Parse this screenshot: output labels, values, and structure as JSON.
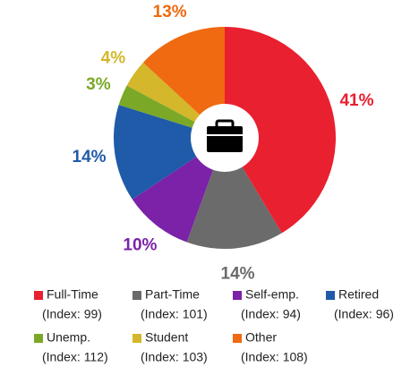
{
  "chart_data": {
    "type": "donut",
    "categories": [
      "Full-Time",
      "Part-Time",
      "Self-emp.",
      "Retired",
      "Unemp.",
      "Student",
      "Other"
    ],
    "index_labels": [
      "(Index: 99)",
      "(Index: 101)",
      "(Index: 94)",
      "(Index: 96)",
      "(Index: 112)",
      "(Index: 103)",
      "(Index: 108)"
    ],
    "values": [
      41,
      14,
      10,
      14,
      3,
      4,
      13
    ],
    "value_labels": [
      "41%",
      "14%",
      "10%",
      "14%",
      "3%",
      "4%",
      "13%"
    ],
    "colors": [
      "#e8202f",
      "#6b6b6b",
      "#7b22a8",
      "#1f5ba8",
      "#7ba827",
      "#d4b72a",
      "#ef6a10"
    ]
  }
}
